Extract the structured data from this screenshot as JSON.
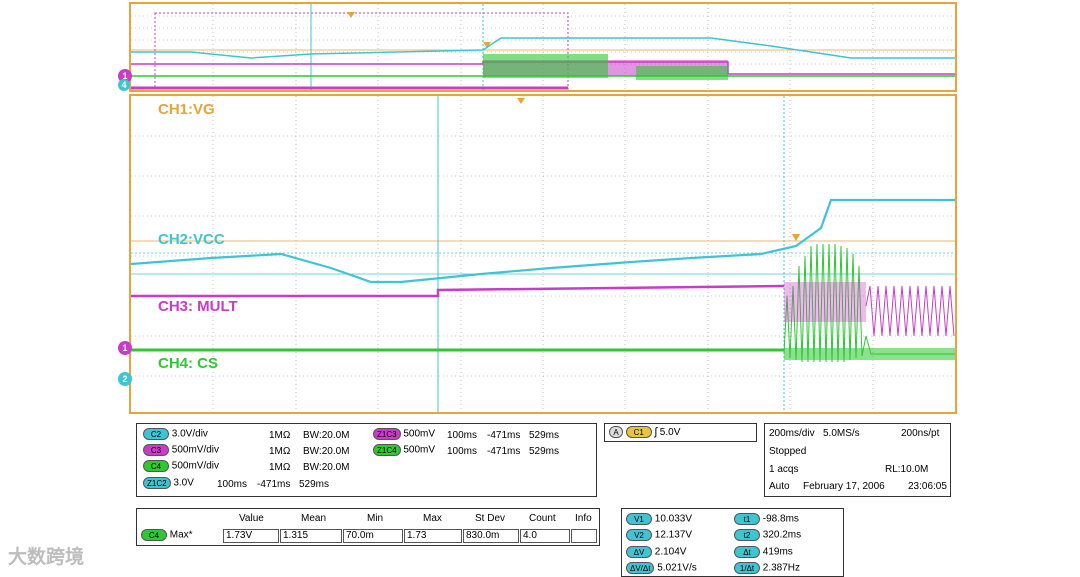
{
  "colors": {
    "ch1": "#e8a33a",
    "ch2": "#3fc4d4",
    "ch3": "#c83cc8",
    "ch4": "#2ec832",
    "grid": "#9a9a9a"
  },
  "channel_labels": {
    "ch1": "CH1:VG",
    "ch2": "CH2:VCC",
    "ch3": "CH3: MULT",
    "ch4": "CH4: CS"
  },
  "markers": {
    "ch1_left": "1",
    "ch2_left": "2",
    "overview_1": "1",
    "overview_4": "4"
  },
  "channel_settings": [
    {
      "badge": "C2",
      "scale": "3.0V/div",
      "impedance": "1MΩ",
      "bandwidth": "BW:20.0M"
    },
    {
      "badge": "C3",
      "scale": "500mV/div",
      "impedance": "1MΩ",
      "bandwidth": "BW:20.0M"
    },
    {
      "badge": "C4",
      "scale": "500mV/div",
      "impedance": "1MΩ",
      "bandwidth": "BW:20.0M"
    },
    {
      "badge": "Z1C2",
      "scale": "3.0V",
      "time": "100ms",
      "start": "-471ms",
      "end": "529ms"
    }
  ],
  "zoom_settings": [
    {
      "badge": "Z1C3",
      "scale": "500mV",
      "time": "100ms",
      "start": "-471ms",
      "end": "529ms"
    },
    {
      "badge": "Z1C4",
      "scale": "500mV",
      "time": "100ms",
      "start": "-471ms",
      "end": "529ms"
    }
  ],
  "trigger": {
    "mode": "A",
    "source": "C1",
    "slope_symbol": "ʃ",
    "level": "5.0V"
  },
  "acquisition": {
    "timebase": "200ms/div",
    "sample_rate": "5.0MS/s",
    "resolution": "200ns/pt",
    "state": "Stopped",
    "acqs": "1 acqs",
    "record_length": "RL:10.0M",
    "trigger_mode": "Auto",
    "date": "February 17, 2006",
    "time": "23:06:05"
  },
  "measurement": {
    "headers": [
      "Value",
      "Mean",
      "Min",
      "Max",
      "St Dev",
      "Count",
      "Info"
    ],
    "badge": "C4",
    "name": "Max*",
    "values": [
      "1.73V",
      "1.315",
      "70.0m",
      "1.73",
      "830.0m",
      "4.0",
      ""
    ]
  },
  "cursors": {
    "v1_label": "V1",
    "v1": "10.033V",
    "v2_label": "V2",
    "v2": "12.137V",
    "dv_label": "ΔV",
    "dv": "2.104V",
    "dvdt_label": "ΔV/Δt",
    "dvdt": "5.021V/s",
    "t1_label": "t1",
    "t1": "-98.8ms",
    "t2_label": "t2",
    "t2": "320.2ms",
    "dt_label": "Δt",
    "dt": "419ms",
    "inv_dt_label": "1/Δt",
    "inv_dt": "2.387Hz"
  },
  "watermark": "大数跨境"
}
